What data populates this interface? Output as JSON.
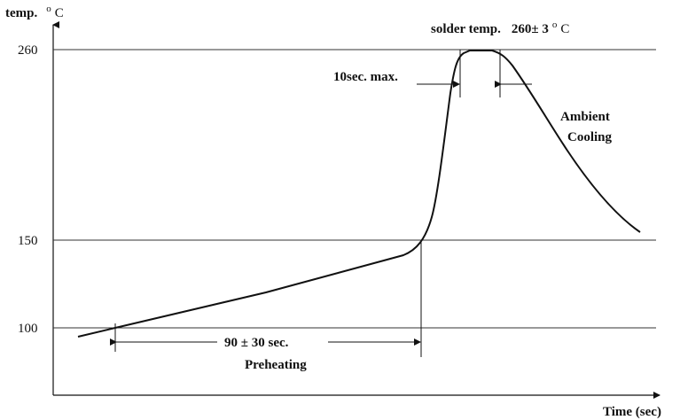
{
  "diagram": {
    "y_axis_label": {
      "prefix": "temp.",
      "sup": "o",
      "unit": "C"
    },
    "x_axis_label": "Time (sec)",
    "y_ticks": [
      "260",
      "150",
      "100"
    ],
    "annotations": {
      "solder_temp_prefix": "solder temp.",
      "solder_temp_value": "260± 3",
      "solder_temp_sup": "o",
      "solder_temp_unit": "C",
      "peak_time": "10sec. max.",
      "cooling_line1": "Ambient",
      "cooling_line2": "Cooling",
      "preheat_time": "90 ± 30 sec.",
      "preheat_label": "Preheating"
    },
    "colors": {
      "line": "#111111",
      "background": "#ffffff"
    }
  }
}
